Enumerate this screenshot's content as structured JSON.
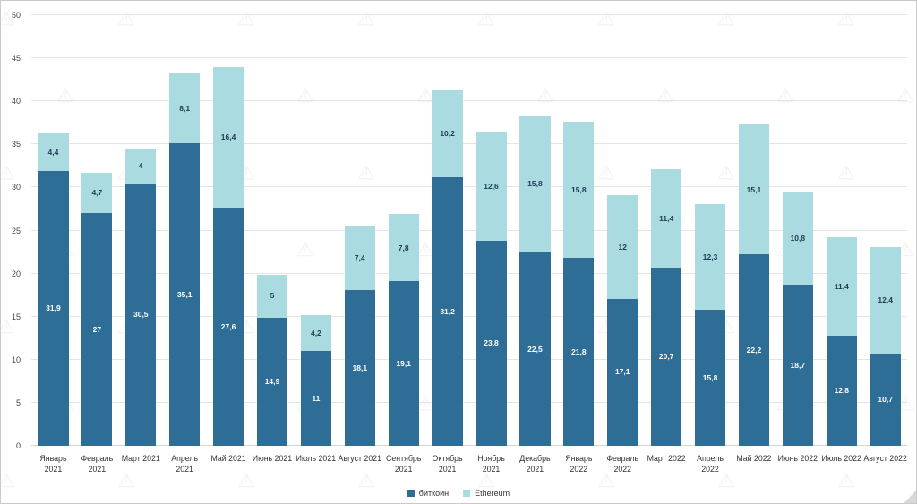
{
  "chart_data": {
    "type": "bar",
    "stacked": true,
    "title": "",
    "xlabel": "",
    "ylabel": "",
    "ylim": [
      0,
      50
    ],
    "ytick_step": 5,
    "grid": true,
    "legend_position": "bottom-center",
    "categories": [
      "Январь 2021",
      "Февраль 2021",
      "Март 2021",
      "Апрель 2021",
      "Май 2021",
      "Июнь 2021",
      "Июль 2021",
      "Август 2021",
      "Сентябрь 2021",
      "Октябрь 2021",
      "Ноябрь 2021",
      "Декабрь 2021",
      "Январь 2022",
      "Февраль 2022",
      "Март 2022",
      "Апрель 2022",
      "Май 2022",
      "Июнь 2022",
      "Июль 2022",
      "Август 2022"
    ],
    "series": [
      {
        "name": "биткоин",
        "color": "#2e6e96",
        "label_color": "#ffffff",
        "values": [
          31.9,
          27,
          30.5,
          35.1,
          27.6,
          14.9,
          11,
          18.1,
          19.1,
          31.2,
          23.8,
          22.5,
          21.8,
          17.1,
          20.7,
          15.8,
          22.2,
          18.7,
          12.8,
          10.7
        ]
      },
      {
        "name": "Ethereum",
        "color": "#a9dbe0",
        "label_color": "#1f3a53",
        "values": [
          4.4,
          4.7,
          4,
          8.1,
          16.4,
          5,
          4.2,
          7.4,
          7.8,
          10.2,
          12.6,
          15.8,
          15.8,
          12,
          11.4,
          12.3,
          15.1,
          10.8,
          11.4,
          12.4
        ]
      }
    ],
    "value_label_decimal_separator": ","
  },
  "colors": {
    "gridline": "#e4e4e4",
    "axis_text": "#444444",
    "background": "#ffffff",
    "watermark": "#9a9a9a"
  }
}
